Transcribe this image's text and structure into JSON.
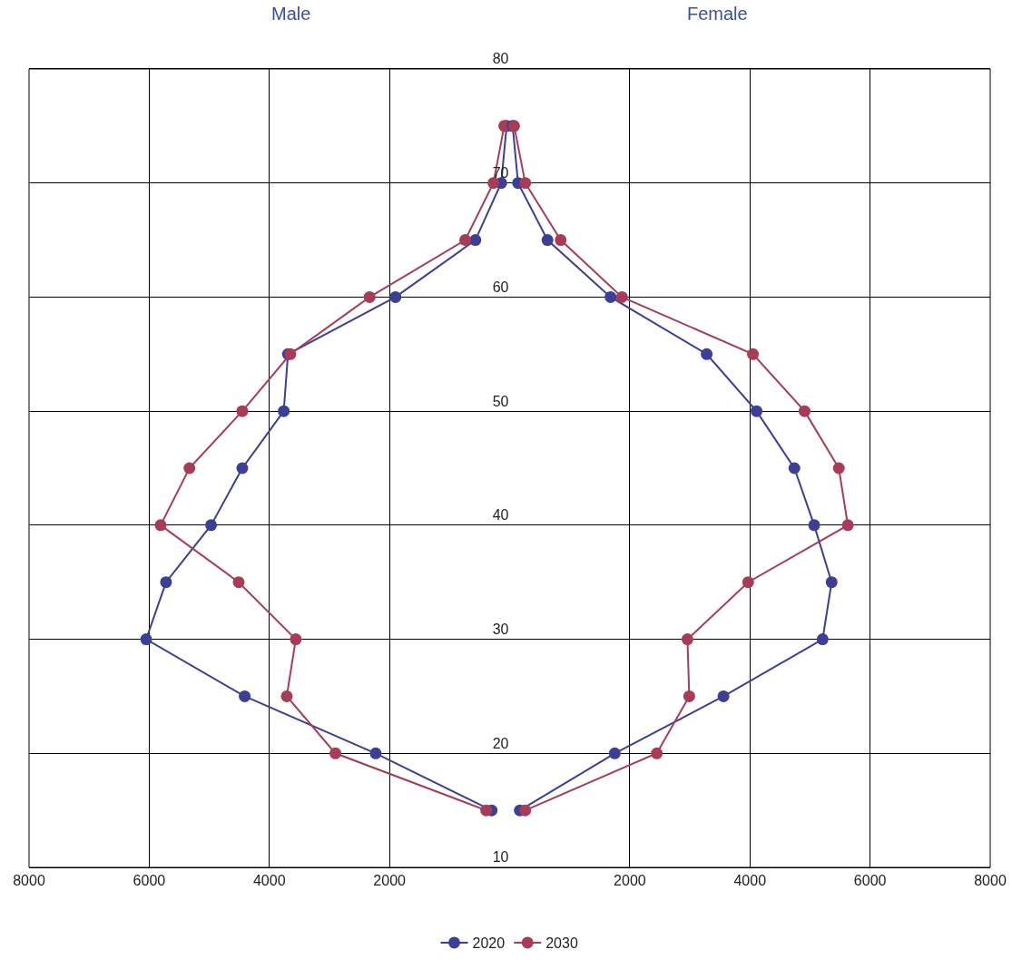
{
  "chart_data": [
    {
      "type": "line",
      "title": "Male",
      "xlim": [
        8000,
        0
      ],
      "xticks": [
        8000,
        6000,
        4000,
        2000
      ],
      "ylim": [
        10,
        80
      ],
      "tick_labels": "x",
      "grid": true,
      "legend": "bottom",
      "marker": "circle",
      "line_style": "solid",
      "series": [
        {
          "name": "2020",
          "color": "#3b3f96",
          "x": [
            300,
            2230,
            4410,
            6050,
            5720,
            4970,
            4450,
            3760,
            3690,
            1900,
            570,
            140,
            50
          ],
          "values": [
            15,
            20,
            25,
            30,
            35,
            40,
            45,
            50,
            55,
            60,
            65,
            70,
            75
          ]
        },
        {
          "name": "2030",
          "color": "#a83c56",
          "x": [
            390,
            2900,
            3710,
            3560,
            4510,
            5810,
            5330,
            4450,
            3650,
            2330,
            740,
            270,
            90
          ],
          "values": [
            15,
            20,
            25,
            30,
            35,
            40,
            45,
            50,
            55,
            60,
            65,
            70,
            75
          ]
        }
      ]
    },
    {
      "type": "line",
      "title": "Female",
      "xlim": [
        0,
        8000
      ],
      "xticks": [
        2000,
        4000,
        6000,
        8000
      ],
      "ylim": [
        10,
        80
      ],
      "yticks": [
        10,
        20,
        30,
        40,
        50,
        60,
        70,
        80
      ],
      "grid": true,
      "marker": "circle",
      "line_style": "solid",
      "series": [
        {
          "name": "2020",
          "color": "#3b3f96",
          "x": [
            170,
            1750,
            3560,
            5210,
            5360,
            5070,
            4740,
            4110,
            3280,
            1680,
            630,
            140,
            50
          ],
          "values": [
            15,
            20,
            25,
            30,
            35,
            40,
            45,
            50,
            55,
            60,
            65,
            70,
            75
          ]
        },
        {
          "name": "2030",
          "color": "#a83c56",
          "x": [
            260,
            2450,
            2990,
            2960,
            3970,
            5630,
            5480,
            4910,
            4050,
            1870,
            850,
            260,
            75
          ],
          "values": [
            15,
            20,
            25,
            30,
            35,
            40,
            45,
            50,
            55,
            60,
            65,
            70,
            75
          ]
        }
      ]
    }
  ]
}
